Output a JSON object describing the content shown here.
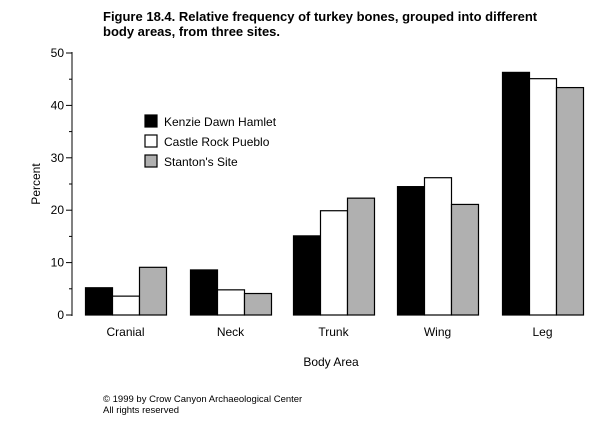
{
  "title_lines": [
    "Figure 18.4.  Relative frequency of turkey bones, grouped into different",
    "body areas, from three sites."
  ],
  "copyright_lines": [
    "© 1999 by Crow Canyon Archaeological Center",
    "All rights reserved"
  ],
  "colors": {
    "kenzie": "#000000",
    "castle": "#ffffff",
    "stanton": "#b0b0b0",
    "outline": "#000000"
  },
  "chart_data": {
    "type": "bar",
    "xlabel": "Body Area",
    "ylabel": "Percent",
    "ylim": [
      0,
      50
    ],
    "yticks": [
      0,
      10,
      20,
      30,
      40,
      50
    ],
    "categories": [
      "Cranial",
      "Neck",
      "Trunk",
      "Wing",
      "Leg"
    ],
    "series": [
      {
        "name": "Kenzie Dawn Hamlet",
        "color": "#000000",
        "values": [
          5.2,
          8.6,
          15.1,
          24.5,
          46.3
        ]
      },
      {
        "name": "Castle Rock Pueblo",
        "color": "#ffffff",
        "values": [
          3.6,
          4.8,
          19.9,
          26.2,
          45.1
        ]
      },
      {
        "name": "Stanton's Site",
        "color": "#b0b0b0",
        "values": [
          9.1,
          4.1,
          22.3,
          21.1,
          43.4
        ]
      }
    ],
    "legend_position": "upper-left",
    "grid": false
  }
}
